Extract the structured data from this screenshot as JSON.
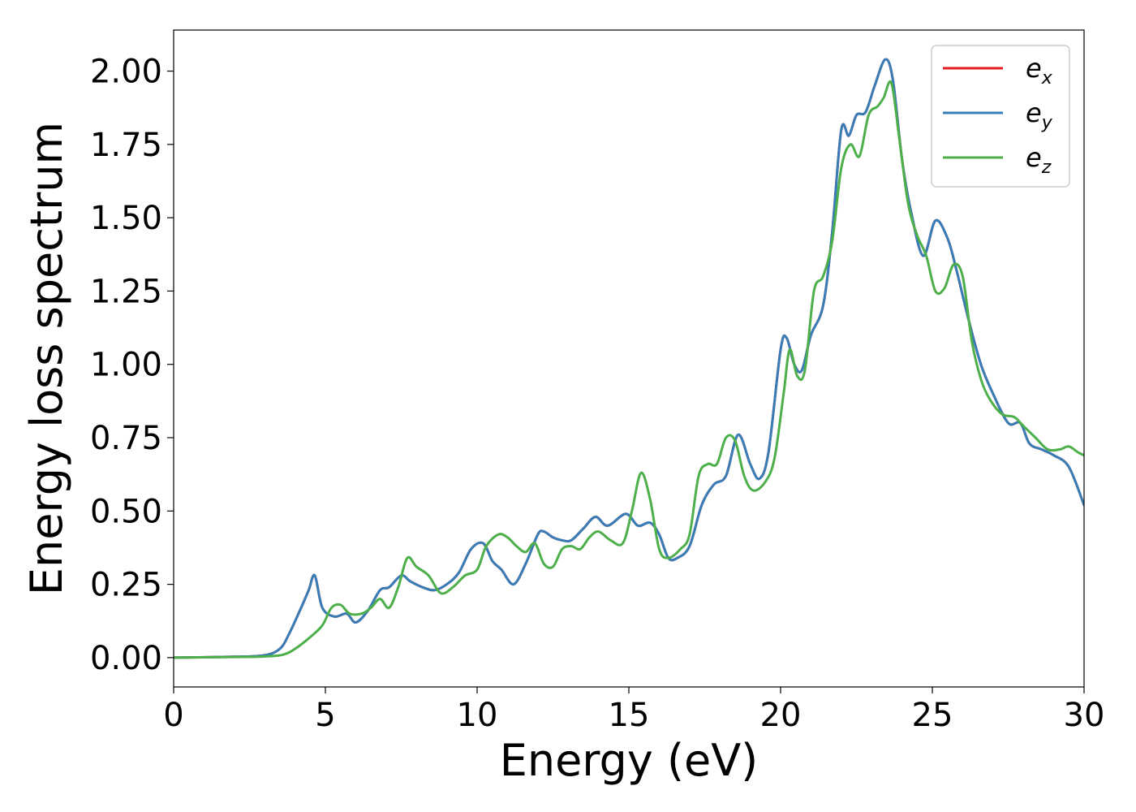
{
  "chart_data": {
    "type": "line",
    "title": "",
    "xlabel": "Energy (eV)",
    "ylabel": "Energy loss spectrum",
    "xlim": [
      0,
      30
    ],
    "ylim": [
      -0.1,
      2.14
    ],
    "xticks": [
      0,
      5,
      10,
      15,
      20,
      25,
      30
    ],
    "xtick_labels": [
      "0",
      "5",
      "10",
      "15",
      "20",
      "25",
      "30"
    ],
    "yticks": [
      0,
      0.25,
      0.5,
      0.75,
      1.0,
      1.25,
      1.5,
      1.75,
      2.0
    ],
    "ytick_labels": [
      "0.00",
      "0.25",
      "0.50",
      "0.75",
      "1.00",
      "1.25",
      "1.50",
      "1.75",
      "2.00"
    ],
    "grid": false,
    "legend_position": "top-right",
    "series": [
      {
        "name": "e",
        "subscript": "x",
        "color": "#e41a1c",
        "x": [
          0,
          2,
          3,
          3.5,
          3.8,
          4.2,
          4.45,
          4.65,
          4.9,
          5.3,
          5.7,
          6.0,
          6.4,
          6.8,
          7.1,
          7.5,
          7.8,
          8.2,
          8.6,
          9.0,
          9.4,
          9.8,
          10.2,
          10.5,
          10.8,
          11.2,
          11.6,
          12.0,
          12.2,
          12.5,
          12.8,
          13.1,
          13.5,
          13.9,
          14.3,
          14.9,
          15.3,
          15.7,
          16.0,
          16.3,
          16.6,
          17.0,
          17.4,
          17.8,
          18.2,
          18.6,
          19.0,
          19.3,
          19.6,
          20.0,
          20.2,
          20.45,
          20.7,
          21.0,
          21.4,
          21.7,
          22.0,
          22.25,
          22.5,
          22.8,
          23.1,
          23.45,
          23.7,
          24.0,
          24.3,
          24.7,
          25.1,
          25.5,
          25.8,
          26.2,
          26.6,
          27.0,
          27.5,
          27.9,
          28.2,
          28.6,
          29.0,
          29.5,
          30
        ],
        "y": [
          0,
          0.003,
          0.008,
          0.03,
          0.08,
          0.17,
          0.23,
          0.28,
          0.17,
          0.14,
          0.15,
          0.12,
          0.16,
          0.23,
          0.24,
          0.28,
          0.26,
          0.24,
          0.23,
          0.25,
          0.29,
          0.37,
          0.39,
          0.33,
          0.3,
          0.25,
          0.32,
          0.42,
          0.43,
          0.41,
          0.4,
          0.4,
          0.44,
          0.48,
          0.45,
          0.49,
          0.45,
          0.46,
          0.42,
          0.34,
          0.34,
          0.38,
          0.52,
          0.59,
          0.62,
          0.76,
          0.66,
          0.61,
          0.7,
          1.05,
          1.09,
          1.0,
          0.98,
          1.1,
          1.2,
          1.45,
          1.8,
          1.78,
          1.85,
          1.86,
          1.95,
          2.04,
          1.97,
          1.7,
          1.52,
          1.37,
          1.49,
          1.43,
          1.32,
          1.15,
          1.0,
          0.9,
          0.8,
          0.8,
          0.73,
          0.71,
          0.69,
          0.65,
          0.52
        ]
      },
      {
        "name": "e",
        "subscript": "y",
        "color": "#377eb8",
        "x": [
          0,
          2,
          3,
          3.5,
          3.8,
          4.2,
          4.45,
          4.65,
          4.9,
          5.3,
          5.7,
          6.0,
          6.4,
          6.8,
          7.1,
          7.5,
          7.8,
          8.2,
          8.6,
          9.0,
          9.4,
          9.8,
          10.2,
          10.5,
          10.8,
          11.2,
          11.6,
          12.0,
          12.2,
          12.5,
          12.8,
          13.1,
          13.5,
          13.9,
          14.3,
          14.9,
          15.3,
          15.7,
          16.0,
          16.3,
          16.6,
          17.0,
          17.4,
          17.8,
          18.2,
          18.6,
          19.0,
          19.3,
          19.6,
          20.0,
          20.2,
          20.45,
          20.7,
          21.0,
          21.4,
          21.7,
          22.0,
          22.25,
          22.5,
          22.8,
          23.1,
          23.45,
          23.7,
          24.0,
          24.3,
          24.7,
          25.1,
          25.5,
          25.8,
          26.2,
          26.6,
          27.0,
          27.5,
          27.9,
          28.2,
          28.6,
          29.0,
          29.5,
          30
        ],
        "y": [
          0,
          0.003,
          0.008,
          0.03,
          0.08,
          0.17,
          0.23,
          0.28,
          0.17,
          0.14,
          0.15,
          0.12,
          0.16,
          0.23,
          0.24,
          0.28,
          0.26,
          0.24,
          0.23,
          0.25,
          0.29,
          0.37,
          0.39,
          0.33,
          0.3,
          0.25,
          0.32,
          0.42,
          0.43,
          0.41,
          0.4,
          0.4,
          0.44,
          0.48,
          0.45,
          0.49,
          0.45,
          0.46,
          0.42,
          0.34,
          0.34,
          0.38,
          0.52,
          0.59,
          0.62,
          0.76,
          0.66,
          0.61,
          0.7,
          1.05,
          1.09,
          1.0,
          0.98,
          1.1,
          1.2,
          1.45,
          1.8,
          1.78,
          1.85,
          1.86,
          1.95,
          2.04,
          1.97,
          1.7,
          1.52,
          1.37,
          1.49,
          1.43,
          1.32,
          1.15,
          1.0,
          0.9,
          0.8,
          0.8,
          0.73,
          0.71,
          0.69,
          0.65,
          0.52
        ]
      },
      {
        "name": "e",
        "subscript": "z",
        "color": "#4daf4a",
        "x": [
          0,
          2,
          3,
          3.6,
          4.0,
          4.5,
          4.9,
          5.2,
          5.5,
          5.8,
          6.2,
          6.5,
          6.8,
          7.1,
          7.4,
          7.7,
          8.0,
          8.4,
          8.8,
          9.2,
          9.6,
          10.0,
          10.3,
          10.7,
          11.0,
          11.3,
          11.6,
          11.9,
          12.2,
          12.5,
          12.8,
          13.1,
          13.4,
          13.7,
          14.0,
          14.4,
          14.8,
          15.1,
          15.4,
          15.7,
          16.0,
          16.3,
          16.7,
          17.0,
          17.3,
          17.6,
          17.9,
          18.2,
          18.5,
          18.8,
          19.1,
          19.5,
          19.8,
          20.1,
          20.3,
          20.55,
          20.8,
          21.1,
          21.4,
          21.7,
          22.0,
          22.3,
          22.6,
          22.9,
          23.2,
          23.4,
          23.65,
          23.9,
          24.2,
          24.5,
          24.8,
          25.1,
          25.4,
          25.7,
          26.0,
          26.3,
          26.6,
          26.9,
          27.3,
          27.7,
          28.0,
          28.4,
          28.8,
          29.2,
          29.5,
          29.8,
          30
        ],
        "y": [
          0,
          0.002,
          0.004,
          0.01,
          0.03,
          0.07,
          0.11,
          0.17,
          0.18,
          0.15,
          0.15,
          0.17,
          0.2,
          0.17,
          0.24,
          0.34,
          0.31,
          0.28,
          0.22,
          0.24,
          0.28,
          0.3,
          0.38,
          0.42,
          0.41,
          0.38,
          0.36,
          0.39,
          0.32,
          0.31,
          0.37,
          0.38,
          0.37,
          0.41,
          0.43,
          0.4,
          0.39,
          0.5,
          0.63,
          0.54,
          0.37,
          0.34,
          0.37,
          0.42,
          0.62,
          0.66,
          0.66,
          0.75,
          0.74,
          0.62,
          0.57,
          0.6,
          0.68,
          0.9,
          1.05,
          0.96,
          0.98,
          1.25,
          1.3,
          1.42,
          1.67,
          1.75,
          1.71,
          1.85,
          1.88,
          1.91,
          1.96,
          1.78,
          1.55,
          1.44,
          1.37,
          1.25,
          1.26,
          1.34,
          1.3,
          1.08,
          0.95,
          0.88,
          0.83,
          0.82,
          0.79,
          0.75,
          0.71,
          0.71,
          0.72,
          0.7,
          0.69
        ]
      }
    ]
  }
}
